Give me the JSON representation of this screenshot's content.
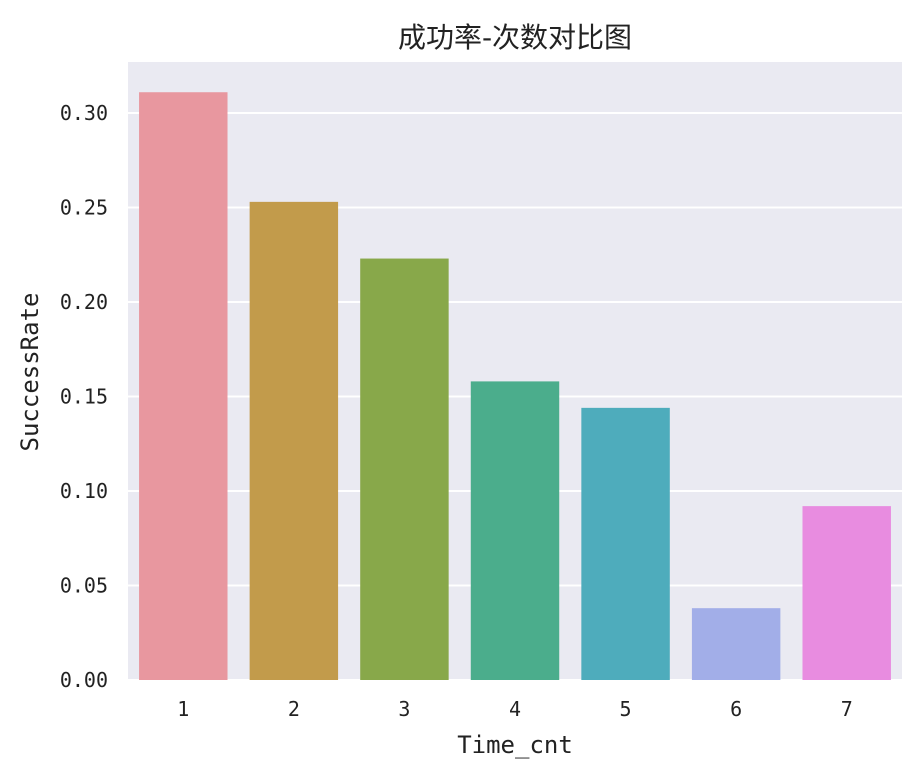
{
  "chart_data": {
    "type": "bar",
    "title": "成功率-次数对比图",
    "xlabel": "Time_cnt",
    "ylabel": "SuccessRate",
    "categories": [
      "1",
      "2",
      "3",
      "4",
      "5",
      "6",
      "7"
    ],
    "values": [
      0.311,
      0.253,
      0.223,
      0.158,
      0.144,
      0.038,
      0.092
    ],
    "colors": [
      "#e8979f",
      "#c29b4b",
      "#88a84a",
      "#4bad8c",
      "#4eacbc",
      "#a2aee8",
      "#e88ce0"
    ],
    "ylim": [
      0,
      0.327
    ],
    "yticks": [
      0.0,
      0.05,
      0.1,
      0.15,
      0.2,
      0.25,
      0.3
    ],
    "ytick_labels": [
      "0.00",
      "0.05",
      "0.10",
      "0.15",
      "0.20",
      "0.25",
      "0.30"
    ],
    "grid": true,
    "legend": "none",
    "background_color": "#eaeaf2",
    "grid_color": "#ffffff"
  }
}
